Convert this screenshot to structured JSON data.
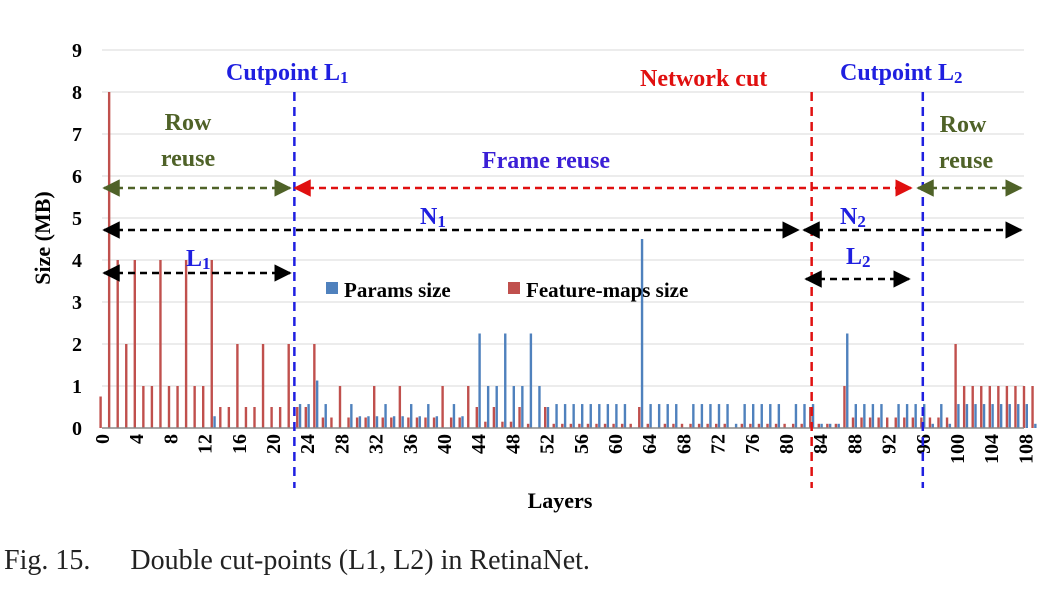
{
  "caption": {
    "number": "Fig. 15.",
    "text": "Double cut-points (L1, L2) in RetinaNet."
  },
  "colors": {
    "params": "#4f81bd",
    "features": "#c0504d",
    "blue_cut": "#1f1fe0",
    "red_cut": "#e01010",
    "green_arrow": "#4f6228",
    "black_arrow": "#000000",
    "frame_reuse": "#3b1fd6"
  },
  "chart_data": {
    "type": "bar",
    "xlabel": "Layers",
    "ylabel": "Size (MB)",
    "ylim": [
      0,
      9
    ],
    "yticks": [
      0,
      1,
      2,
      3,
      4,
      5,
      6,
      7,
      8,
      9
    ],
    "x_range": [
      0,
      108
    ],
    "xticks": [
      0,
      4,
      8,
      12,
      16,
      20,
      24,
      28,
      32,
      36,
      40,
      44,
      48,
      52,
      56,
      60,
      64,
      68,
      72,
      76,
      80,
      84,
      88,
      92,
      96,
      100,
      104,
      108
    ],
    "grid": "horizontal",
    "legend": {
      "placement": "center",
      "entries": [
        "Params size",
        "Feature-maps size"
      ]
    },
    "series": [
      {
        "name": "Params size",
        "values": [
          0,
          0,
          0,
          0,
          0,
          0,
          0,
          0,
          0,
          0,
          0,
          0,
          0,
          0.28,
          0,
          0,
          0,
          0,
          0,
          0,
          0,
          0,
          0,
          0.57,
          0.57,
          1.13,
          0.57,
          0,
          0,
          0.57,
          0.28,
          0.28,
          0.28,
          0.57,
          0.28,
          0.28,
          0.57,
          0.28,
          0.57,
          0.28,
          0,
          0.57,
          0.28,
          0,
          2.25,
          1.0,
          1.0,
          2.25,
          1.0,
          1.0,
          2.25,
          1.0,
          0.5,
          0.57,
          0.57,
          0.57,
          0.57,
          0.57,
          0.57,
          0.57,
          0.57,
          0.57,
          0,
          4.5,
          0.57,
          0.57,
          0.57,
          0.57,
          0,
          0.57,
          0.57,
          0.57,
          0.57,
          0.57,
          0.1,
          0.57,
          0.57,
          0.57,
          0.57,
          0.57,
          0,
          0.57,
          0.57,
          0.57,
          0.1,
          0.1,
          0.1,
          2.25,
          0.57,
          0.57,
          0.57,
          0.57,
          0,
          0.57,
          0.57,
          0.57,
          0.57,
          0.1,
          0.57,
          0.1,
          0.57,
          0.57,
          0.57,
          0.57,
          0.57,
          0.57,
          0.57,
          0.57,
          0.57,
          0.1
        ]
      },
      {
        "name": "Feature-maps size",
        "values": [
          0.75,
          8.0,
          4.0,
          2.0,
          4.0,
          1.0,
          1.0,
          4.0,
          1.0,
          1.0,
          4.0,
          1.0,
          1.0,
          4.0,
          0.5,
          0.5,
          2.0,
          0.5,
          0.5,
          2.0,
          0.5,
          0.5,
          2.0,
          0.5,
          0.5,
          2.0,
          0.25,
          0.25,
          1.0,
          0.25,
          0.25,
          0.25,
          1.0,
          0.25,
          0.25,
          1.0,
          0.25,
          0.25,
          0.25,
          0.25,
          1.0,
          0.25,
          0.25,
          1.0,
          0.5,
          0.15,
          0.5,
          0.15,
          0.15,
          0.5,
          0.1,
          0,
          0.5,
          0.1,
          0.1,
          0.1,
          0.1,
          0.1,
          0.1,
          0.1,
          0.1,
          0.1,
          0.1,
          0.5,
          0.1,
          0,
          0.1,
          0.1,
          0.1,
          0.1,
          0.1,
          0.1,
          0.1,
          0.1,
          0,
          0.1,
          0.1,
          0.1,
          0.1,
          0.1,
          0.1,
          0.1,
          0.1,
          0.5,
          0.1,
          0.1,
          0.1,
          1.0,
          0.25,
          0.25,
          0.25,
          0.25,
          0.25,
          0.25,
          0.25,
          0.25,
          0.25,
          0.25,
          0.25,
          0.25,
          2.0,
          1.0,
          1.0,
          1.0,
          1.0,
          1.0,
          1.0,
          1.0,
          1.0,
          1.0,
          1.0
        ]
      }
    ],
    "cutlines": [
      {
        "label": "Cutpoint L",
        "sub": "1",
        "x": 22.5,
        "color": "blue_cut"
      },
      {
        "label": "Network cut",
        "sub": "",
        "x": 83,
        "color": "red_cut"
      },
      {
        "label": "Cutpoint L",
        "sub": "2",
        "x": 96,
        "color": "blue_cut"
      }
    ],
    "annotations": {
      "row_reuse_left": [
        "Row",
        "reuse"
      ],
      "row_reuse_right": [
        "Row",
        "reuse"
      ],
      "frame_reuse": "Frame reuse",
      "n1": {
        "label": "N",
        "sub": "1"
      },
      "n2": {
        "label": "N",
        "sub": "2"
      },
      "l1": {
        "label": "L",
        "sub": "1"
      },
      "l2": {
        "label": "L",
        "sub": "2"
      }
    }
  }
}
